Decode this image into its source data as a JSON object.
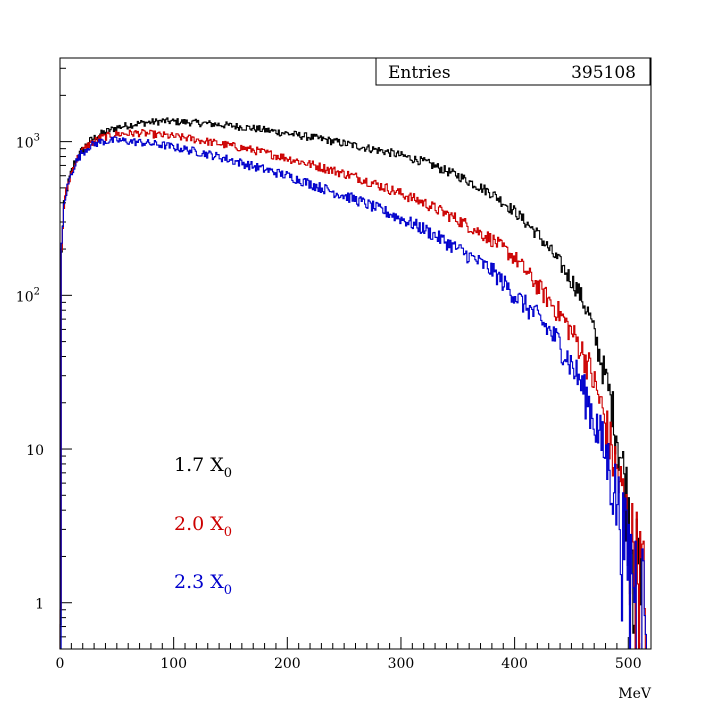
{
  "chart_data": {
    "type": "line",
    "title": "",
    "xlabel": "MeV",
    "ylabel": "",
    "x_range": [
      0,
      520
    ],
    "y_range": [
      0.5,
      3500
    ],
    "y_scale": "log",
    "grid": false,
    "x_ticks": [
      {
        "value": 0,
        "label": "0"
      },
      {
        "value": 100,
        "label": "100"
      },
      {
        "value": 200,
        "label": "200"
      },
      {
        "value": 300,
        "label": "300"
      },
      {
        "value": 400,
        "label": "400"
      },
      {
        "value": 500,
        "label": "500"
      }
    ],
    "y_ticks": [
      {
        "value": 1,
        "label": "1"
      },
      {
        "value": 10,
        "label": "10"
      },
      {
        "value": 100,
        "label": "10",
        "sup": "2"
      },
      {
        "value": 1000,
        "label": "10",
        "sup": "3"
      }
    ],
    "stats_box": {
      "label": "Entries",
      "value": "395108"
    },
    "legend_placement": "lower-left",
    "series": [
      {
        "name": "1.7 X",
        "subscript": "0",
        "color": "#000000",
        "points": [
          [
            0,
            0.5
          ],
          [
            1,
            200
          ],
          [
            3,
            380
          ],
          [
            5,
            470
          ],
          [
            8,
            580
          ],
          [
            12,
            720
          ],
          [
            18,
            860
          ],
          [
            25,
            1000
          ],
          [
            35,
            1120
          ],
          [
            50,
            1240
          ],
          [
            70,
            1320
          ],
          [
            90,
            1360
          ],
          [
            110,
            1340
          ],
          [
            130,
            1310
          ],
          [
            150,
            1270
          ],
          [
            170,
            1220
          ],
          [
            200,
            1130
          ],
          [
            230,
            1040
          ],
          [
            260,
            940
          ],
          [
            290,
            850
          ],
          [
            320,
            740
          ],
          [
            350,
            600
          ],
          [
            380,
            460
          ],
          [
            400,
            350
          ],
          [
            420,
            250
          ],
          [
            440,
            160
          ],
          [
            455,
            110
          ],
          [
            465,
            75
          ],
          [
            475,
            40
          ],
          [
            485,
            20
          ],
          [
            492,
            10
          ],
          [
            497,
            6
          ],
          [
            503,
            3
          ],
          [
            508,
            1.5
          ],
          [
            512,
            1
          ]
        ]
      },
      {
        "name": "2.0 X",
        "subscript": "0",
        "color": "#cc0000",
        "points": [
          [
            0,
            0.5
          ],
          [
            1,
            200
          ],
          [
            3,
            380
          ],
          [
            5,
            470
          ],
          [
            8,
            575
          ],
          [
            12,
            710
          ],
          [
            18,
            850
          ],
          [
            25,
            960
          ],
          [
            35,
            1060
          ],
          [
            50,
            1120
          ],
          [
            70,
            1140
          ],
          [
            90,
            1100
          ],
          [
            110,
            1060
          ],
          [
            130,
            1000
          ],
          [
            150,
            940
          ],
          [
            170,
            880
          ],
          [
            200,
            780
          ],
          [
            230,
            680
          ],
          [
            260,
            590
          ],
          [
            290,
            490
          ],
          [
            320,
            400
          ],
          [
            350,
            310
          ],
          [
            380,
            230
          ],
          [
            400,
            175
          ],
          [
            420,
            115
          ],
          [
            440,
            75
          ],
          [
            455,
            50
          ],
          [
            465,
            35
          ],
          [
            475,
            20
          ],
          [
            485,
            10
          ],
          [
            492,
            6
          ],
          [
            500,
            3
          ],
          [
            508,
            2
          ],
          [
            515,
            1
          ]
        ]
      },
      {
        "name": "2.3 X",
        "subscript": "0",
        "color": "#0000cc",
        "points": [
          [
            0,
            0.5
          ],
          [
            1,
            200
          ],
          [
            3,
            380
          ],
          [
            5,
            470
          ],
          [
            8,
            570
          ],
          [
            12,
            700
          ],
          [
            18,
            830
          ],
          [
            25,
            930
          ],
          [
            35,
            1000
          ],
          [
            50,
            1020
          ],
          [
            70,
            990
          ],
          [
            90,
            950
          ],
          [
            110,
            890
          ],
          [
            130,
            830
          ],
          [
            150,
            760
          ],
          [
            170,
            690
          ],
          [
            200,
            600
          ],
          [
            230,
            500
          ],
          [
            260,
            420
          ],
          [
            290,
            340
          ],
          [
            320,
            270
          ],
          [
            350,
            200
          ],
          [
            380,
            145
          ],
          [
            400,
            100
          ],
          [
            420,
            72
          ],
          [
            440,
            48
          ],
          [
            455,
            30
          ],
          [
            465,
            20
          ],
          [
            475,
            12
          ],
          [
            485,
            7
          ],
          [
            492,
            4
          ],
          [
            500,
            2
          ],
          [
            508,
            1.5
          ],
          [
            515,
            1
          ]
        ]
      }
    ]
  }
}
